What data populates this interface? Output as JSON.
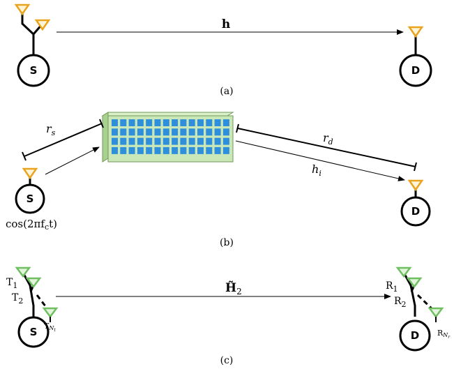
{
  "colors": {
    "orange_antenna": "#e9a31d",
    "orange_fill": "#fff4d9",
    "green_antenna": "#6fbf61",
    "green_fill": "#e3f3dc",
    "surface_face": "#c9e7b7",
    "surface_side": "#a9d08f",
    "surface_element": "#2f8fdd",
    "ink": "#000000"
  },
  "icons": {
    "antenna": "triangle-antenna-icon",
    "surface": "intelligent-surface-panel-icon"
  },
  "panel_a": {
    "source_label": "S",
    "destination_label": "D",
    "channel_label": "h",
    "caption": "(a)"
  },
  "panel_b": {
    "source_label": "S",
    "destination_label": "D",
    "source_signal": "cos(2πf",
    "source_signal_sub": "c",
    "source_signal_end": "t)",
    "distance_source_label": "r",
    "distance_source_sub": "s",
    "distance_destination_label": "r",
    "distance_destination_sub": "d",
    "channel_label": "h",
    "channel_sub": "i",
    "caption": "(b)"
  },
  "panel_c": {
    "source_label": "S",
    "destination_label": "D",
    "channel_label": "H̃",
    "channel_sub": "2",
    "tx_label_1": "T",
    "tx_sub_1": "1",
    "tx_label_2": "T",
    "tx_sub_2": "2",
    "tx_label_n": "T",
    "tx_sub_n": "N",
    "tx_sub_n_sub": "t",
    "rx_label_1": "R",
    "rx_sub_1": "1",
    "rx_label_2": "R",
    "rx_sub_2": "2",
    "rx_label_n": "R",
    "rx_sub_n": "N",
    "rx_sub_n_sub": "r",
    "caption": "(c)"
  }
}
